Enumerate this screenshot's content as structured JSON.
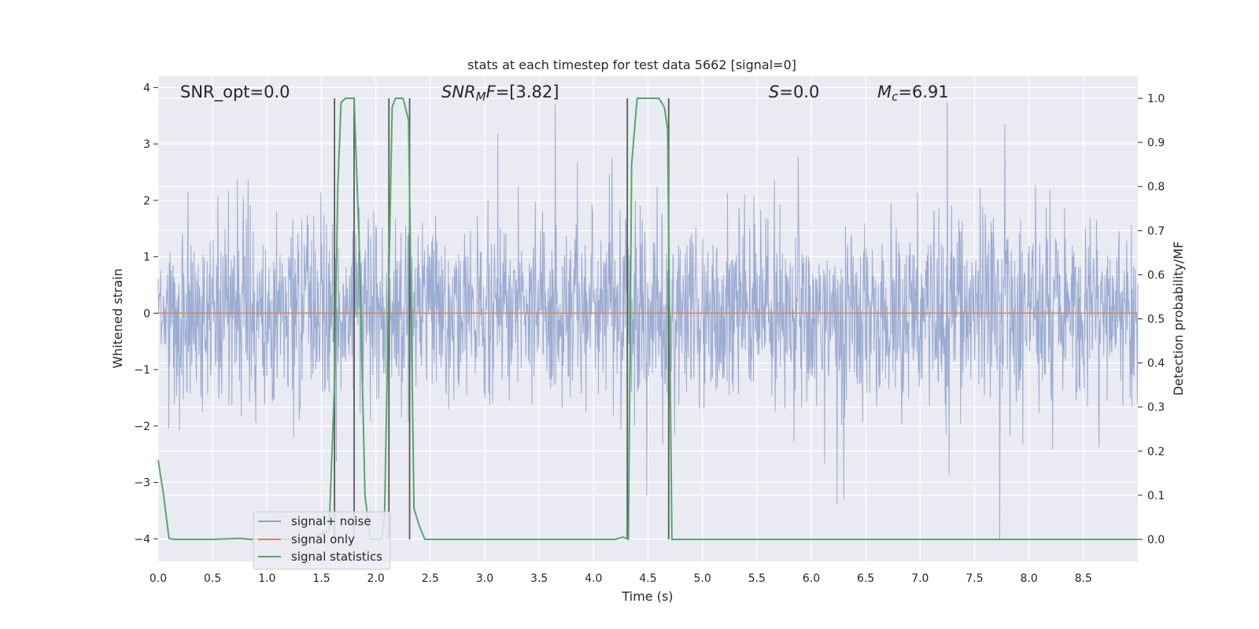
{
  "chart_data": {
    "type": "line",
    "title": "stats at each timestep for test data 5662 [signal=0]",
    "xlabel": "Time (s)",
    "ylabel_left": "Whitened strain",
    "ylabel_right": "Detection probability/MF",
    "xlim": [
      0,
      9
    ],
    "ylim_left": [
      -4.4,
      4.2
    ],
    "ylim_right": [
      -0.05,
      1.05
    ],
    "x_ticks": [
      "0.0",
      "0.5",
      "1.0",
      "1.5",
      "2.0",
      "2.5",
      "3.0",
      "3.5",
      "4.0",
      "4.5",
      "5.0",
      "5.5",
      "6.0",
      "6.5",
      "7.0",
      "7.5",
      "8.0",
      "8.5"
    ],
    "y_ticks_left": [
      "−4",
      "−3",
      "−2",
      "−1",
      "0",
      "1",
      "2",
      "3",
      "4"
    ],
    "y_ticks_right": [
      "0.0",
      "0.1",
      "0.2",
      "0.3",
      "0.4",
      "0.5",
      "0.6",
      "0.7",
      "0.8",
      "0.9",
      "1.0"
    ],
    "grid": true,
    "legend_position": "lower-left",
    "annotations": [
      {
        "id": "snr-opt",
        "text": "SNR_opt=0.0"
      },
      {
        "id": "snr-mf",
        "text": "=[3.82]"
      },
      {
        "id": "s-stat",
        "text": "=0.0"
      },
      {
        "id": "mc",
        "text": "=6.91"
      }
    ],
    "annotation_symbols": {
      "snr_mf_base": "SNR",
      "snr_mf_sub": "M",
      "snr_mf_tail": "F",
      "s_symbol": "S",
      "mc_base": "M",
      "mc_sub": "c"
    },
    "series": [
      {
        "name": "signal+ noise",
        "axis": "left",
        "color": "#8da0cb",
        "kind": "noise",
        "noise_envelope": {
          "sigma": 0.85,
          "min": -4.0,
          "max": 3.8
        },
        "notable_peaks": [
          [
            7.25,
            3.75
          ],
          [
            7.78,
            3.35
          ],
          [
            3.65,
            3.7
          ],
          [
            6.3,
            -3.3
          ],
          [
            7.73,
            -4.0
          ]
        ]
      },
      {
        "name": "signal only",
        "axis": "left",
        "color": "#dd8452",
        "x": [
          0,
          9
        ],
        "y": [
          0,
          0
        ]
      },
      {
        "name": "signal statistics",
        "axis": "right",
        "color": "#55a868",
        "x": [
          0.0,
          0.05,
          0.1,
          0.15,
          0.3,
          0.5,
          0.75,
          0.85,
          1.0,
          1.2,
          1.4,
          1.57,
          1.62,
          1.65,
          1.68,
          1.72,
          1.8,
          1.85,
          1.9,
          1.95,
          2.05,
          2.08,
          2.12,
          2.15,
          2.18,
          2.25,
          2.3,
          2.35,
          2.4,
          2.45,
          2.5,
          3.0,
          3.5,
          4.0,
          4.2,
          4.27,
          4.32,
          4.35,
          4.4,
          4.6,
          4.65,
          4.68,
          4.72,
          4.8,
          5.0,
          6.0,
          7.0,
          8.0,
          9.0
        ],
        "y": [
          0.18,
          0.1,
          0.002,
          0.0,
          0.0,
          0.0,
          0.002,
          0.0,
          0.0,
          0.0,
          0.0,
          0.02,
          0.35,
          0.8,
          0.99,
          1.0,
          1.0,
          0.65,
          0.1,
          0.0,
          0.0,
          0.05,
          0.6,
          0.98,
          1.0,
          1.0,
          0.95,
          0.07,
          0.03,
          0.0,
          0.0,
          0.0,
          0.0,
          0.0,
          0.0,
          0.005,
          0.0,
          0.85,
          1.0,
          1.0,
          0.98,
          0.93,
          0.0,
          0.0,
          0.0,
          0.0,
          0.0,
          0.0,
          0.0
        ]
      }
    ],
    "vertical_markers": {
      "color": "#595959",
      "x": [
        1.62,
        1.8,
        2.12,
        2.31,
        4.31,
        4.69
      ],
      "y_top": 1.0,
      "y_bottom": 0.0
    }
  }
}
